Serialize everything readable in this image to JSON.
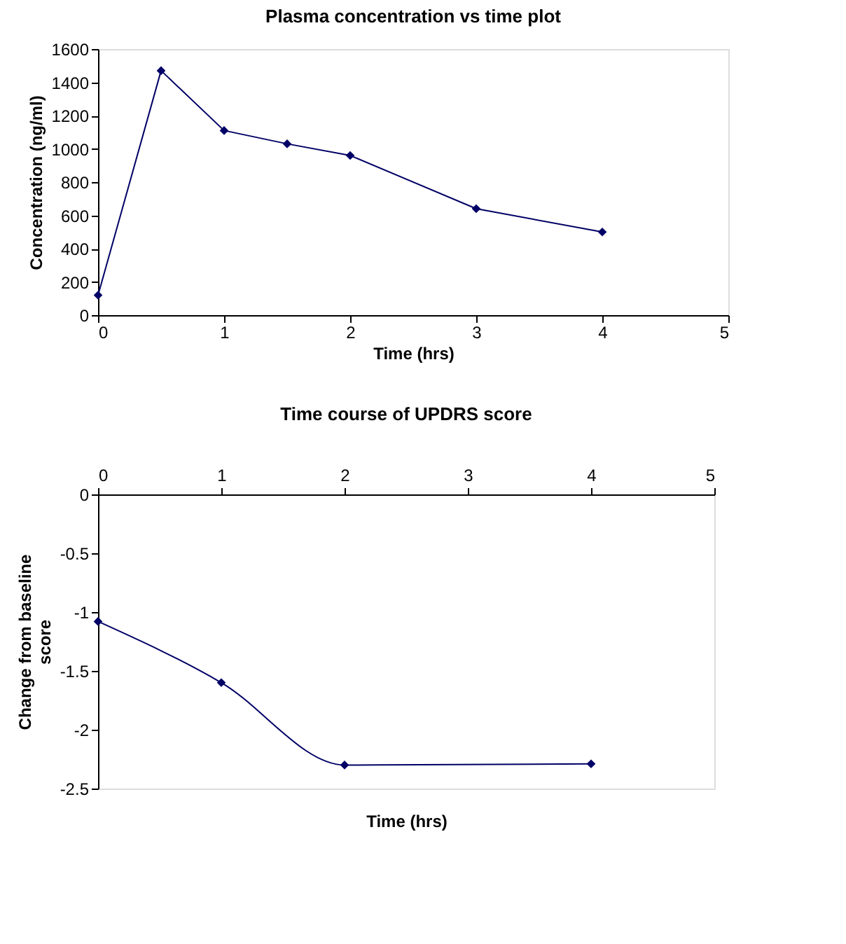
{
  "chart_data": [
    {
      "type": "line",
      "title": "Plasma concentration vs time plot",
      "xlabel": "Time (hrs)",
      "ylabel": "Concentration (ng/ml)",
      "x": [
        0,
        0.5,
        1,
        1.5,
        2,
        3,
        4
      ],
      "series": [
        {
          "color": "#000066",
          "values": [
            120,
            1470,
            1110,
            1030,
            960,
            640,
            500
          ]
        }
      ],
      "xlim": [
        0,
        5
      ],
      "xticks": [
        0,
        1,
        2,
        3,
        4,
        5
      ],
      "ylim": [
        0,
        1600
      ],
      "yticks": [
        0,
        200,
        400,
        600,
        800,
        1000,
        1200,
        1400,
        1600
      ],
      "marker": "diamond",
      "grid": false
    },
    {
      "type": "line",
      "title": "Time course of UPDRS score",
      "xlabel": "Time (hrs)",
      "ylabel": "Change from baseline score",
      "x": [
        0,
        1,
        2,
        4
      ],
      "series": [
        {
          "color": "#000066",
          "values": [
            -1.08,
            -1.6,
            -2.3,
            -2.29
          ]
        }
      ],
      "xlim": [
        0,
        5
      ],
      "xticks": [
        0,
        1,
        2,
        3,
        4,
        5
      ],
      "ylim": [
        -2.5,
        0
      ],
      "yticks": [
        -2.5,
        -2,
        -1.5,
        -1,
        -0.5,
        0
      ],
      "marker": "diamond",
      "grid": false
    }
  ]
}
